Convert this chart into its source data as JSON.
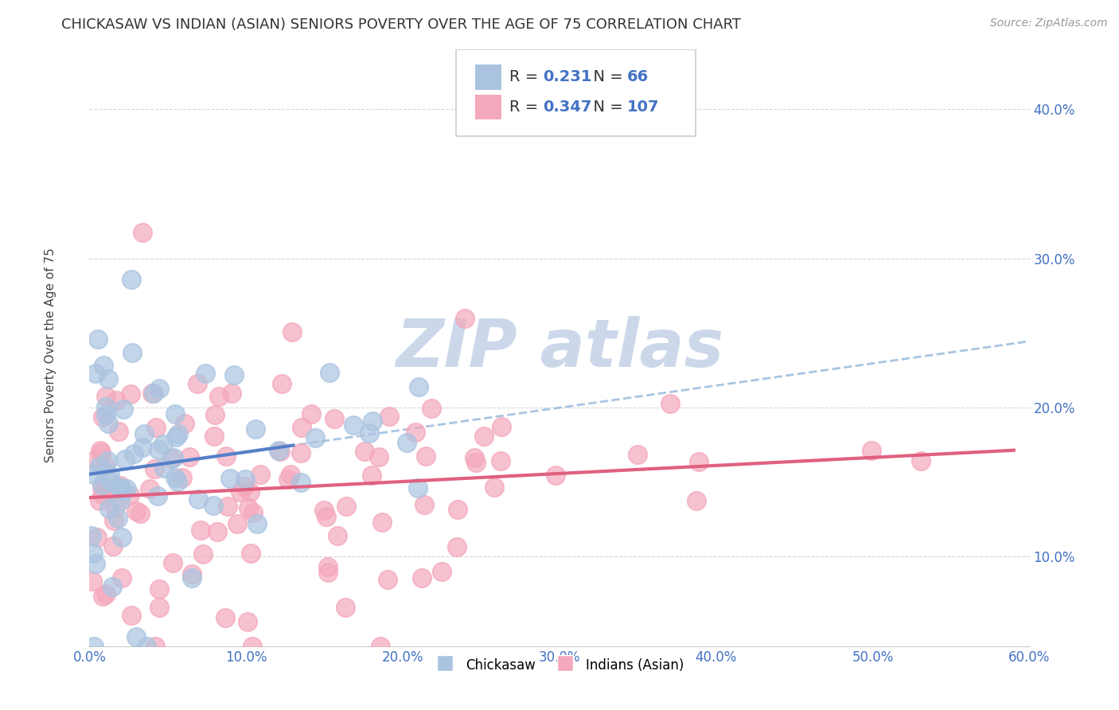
{
  "title": "CHICKASAW VS INDIAN (ASIAN) SENIORS POVERTY OVER THE AGE OF 75 CORRELATION CHART",
  "source": "Source: ZipAtlas.com",
  "ylabel": "Seniors Poverty Over the Age of 75",
  "xlim": [
    0.0,
    0.6
  ],
  "ylim": [
    0.04,
    0.44
  ],
  "xticks": [
    0.0,
    0.1,
    0.2,
    0.3,
    0.4,
    0.5,
    0.6
  ],
  "yticks": [
    0.1,
    0.2,
    0.3,
    0.4
  ],
  "chickasaw_R": 0.231,
  "chickasaw_N": 66,
  "indian_R": 0.347,
  "indian_N": 107,
  "chickasaw_color": "#aac4e0",
  "indian_color": "#f4a8bc",
  "chickasaw_line_color": "#5580c8",
  "indian_line_color": "#e06080",
  "dashed_line_color": "#99bbdd",
  "background_color": "#ffffff",
  "grid_color": "#cccccc",
  "watermark_color": "#ccd8ea",
  "title_fontsize": 13,
  "axis_label_fontsize": 11,
  "tick_fontsize": 12,
  "legend_fontsize": 14,
  "source_fontsize": 10,
  "chickasaw_legend": "Chickasaw",
  "indian_legend": "Indians (Asian)"
}
